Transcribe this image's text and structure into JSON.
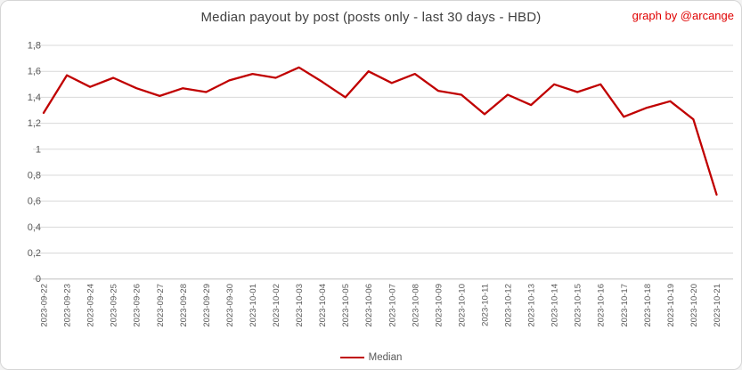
{
  "header": {
    "title": "Median payout by post (posts only - last 30 days - HBD)",
    "credit": "graph by @arcange"
  },
  "legend": {
    "label": "Median"
  },
  "colors": {
    "line": "#c00000",
    "credit_text": "#e00000",
    "title_text": "#404040",
    "axis_text": "#595959",
    "gridline": "#d9d9d9",
    "axis_line": "#bfbfbf"
  },
  "chart_data": {
    "type": "line",
    "title": "Median payout by post (posts only - last 30 days - HBD)",
    "xlabel": "",
    "ylabel": "",
    "ylim": [
      0,
      1.8
    ],
    "y_tick_step": 0.2,
    "grid": "horizontal",
    "legend_position": "bottom",
    "y_ticks": [
      {
        "v": 0.0,
        "label": "0"
      },
      {
        "v": 0.2,
        "label": "0,2"
      },
      {
        "v": 0.4,
        "label": "0,4"
      },
      {
        "v": 0.6,
        "label": "0,6"
      },
      {
        "v": 0.8,
        "label": "0,8"
      },
      {
        "v": 1.0,
        "label": "1"
      },
      {
        "v": 1.2,
        "label": "1,2"
      },
      {
        "v": 1.4,
        "label": "1,4"
      },
      {
        "v": 1.6,
        "label": "1,6"
      },
      {
        "v": 1.8,
        "label": "1,8"
      }
    ],
    "categories": [
      "2023-09-22",
      "2023-09-23",
      "2023-09-24",
      "2023-09-25",
      "2023-09-26",
      "2023-09-27",
      "2023-09-28",
      "2023-09-29",
      "2023-09-30",
      "2023-10-01",
      "2023-10-02",
      "2023-10-03",
      "2023-10-04",
      "2023-10-05",
      "2023-10-06",
      "2023-10-07",
      "2023-10-08",
      "2023-10-09",
      "2023-10-10",
      "2023-10-11",
      "2023-10-12",
      "2023-10-13",
      "2023-10-14",
      "2023-10-15",
      "2023-10-16",
      "2023-10-17",
      "2023-10-18",
      "2023-10-19",
      "2023-10-20",
      "2023-10-21"
    ],
    "series": [
      {
        "name": "Median",
        "values": [
          1.28,
          1.57,
          1.48,
          1.55,
          1.47,
          1.41,
          1.47,
          1.44,
          1.53,
          1.58,
          1.55,
          1.63,
          1.52,
          1.4,
          1.6,
          1.51,
          1.58,
          1.45,
          1.42,
          1.27,
          1.42,
          1.34,
          1.5,
          1.44,
          1.5,
          1.25,
          1.32,
          1.37,
          1.23,
          0.65
        ]
      }
    ]
  }
}
